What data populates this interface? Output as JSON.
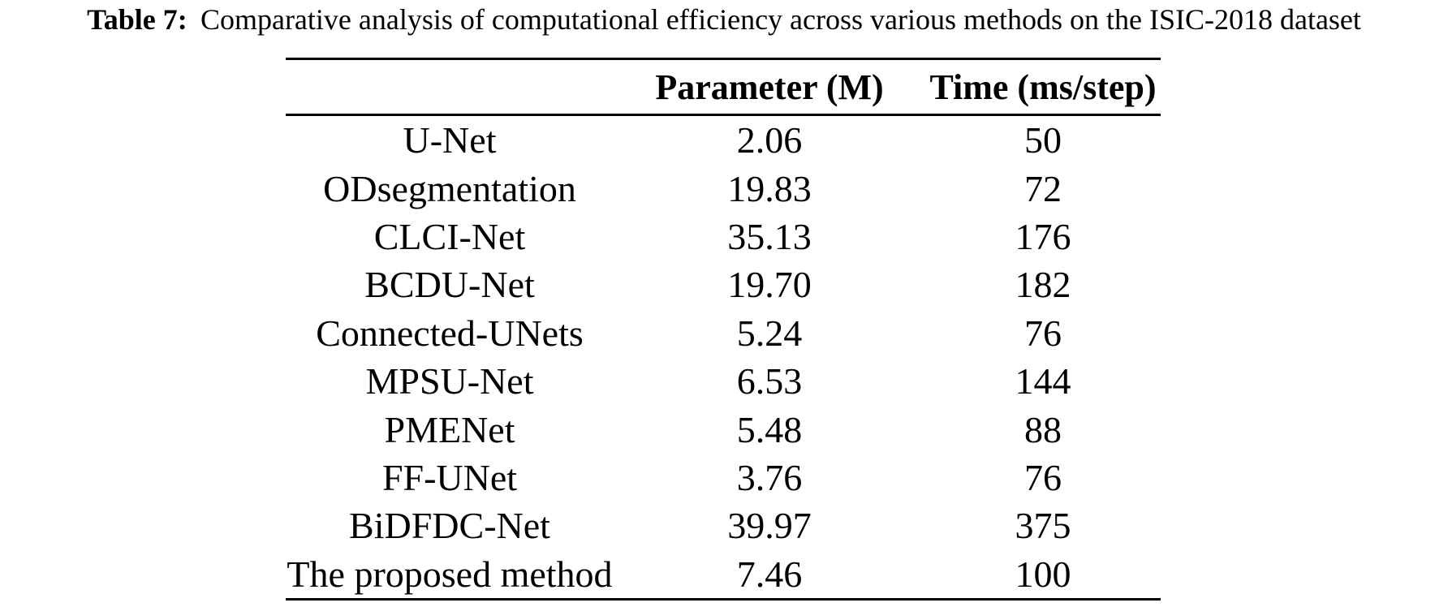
{
  "colors": {
    "text": "#000000",
    "background": "#ffffff",
    "rule": "#000000"
  },
  "caption": {
    "label": "Table 7:",
    "text": "Comparative analysis of computational efficiency across various methods on the ISIC-2018 dataset"
  },
  "table": {
    "columns": [
      "",
      "Parameter (M)",
      "Time (ms/step)"
    ],
    "rows": [
      {
        "method": "U-Net",
        "parameter": "2.06",
        "time": "50"
      },
      {
        "method": "ODsegmentation",
        "parameter": "19.83",
        "time": "72"
      },
      {
        "method": "CLCI-Net",
        "parameter": "35.13",
        "time": "176"
      },
      {
        "method": "BCDU-Net",
        "parameter": "19.70",
        "time": "182"
      },
      {
        "method": "Connected-UNets",
        "parameter": "5.24",
        "time": "76"
      },
      {
        "method": "MPSU-Net",
        "parameter": "6.53",
        "time": "144"
      },
      {
        "method": "PMENet",
        "parameter": "5.48",
        "time": "88"
      },
      {
        "method": "FF-UNet",
        "parameter": "3.76",
        "time": "76"
      },
      {
        "method": "BiDFDC-Net",
        "parameter": "39.97",
        "time": "375"
      },
      {
        "method": "The proposed method",
        "parameter": "7.46",
        "time": "100"
      }
    ]
  }
}
